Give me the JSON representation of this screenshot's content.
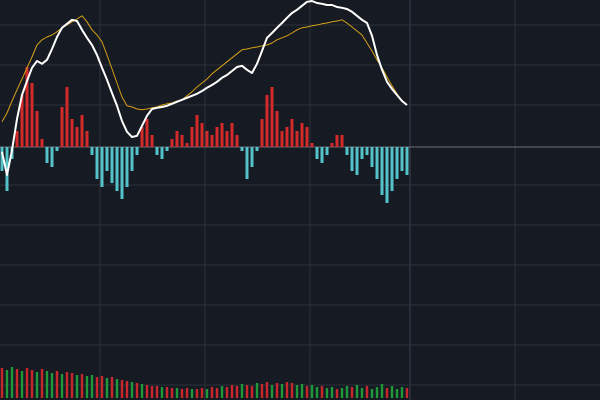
{
  "chart_data": {
    "type": "macd",
    "ylim": [
      -4.95,
      3.675
    ],
    "zero": 0,
    "histogram": {
      "up_color": "#d42a2a",
      "down_color": "#54c2c9",
      "values": [
        -0.6,
        -1.1,
        -0.3,
        0.4,
        1.3,
        2.0,
        1.6,
        0.9,
        0.2,
        -0.4,
        -0.5,
        -0.1,
        1.0,
        1.5,
        0.7,
        0.5,
        0.8,
        0.4,
        -0.2,
        -0.8,
        -1.0,
        -0.6,
        -0.9,
        -1.1,
        -1.3,
        -1.0,
        -0.6,
        -0.2,
        0.5,
        0.7,
        0.3,
        -0.2,
        -0.3,
        -0.1,
        0.2,
        0.4,
        0.3,
        0.1,
        0.5,
        0.8,
        0.6,
        0.4,
        0.3,
        0.5,
        0.6,
        0.4,
        0.6,
        0.3,
        -0.1,
        -0.8,
        -0.5,
        -0.1,
        0.7,
        1.3,
        1.5,
        0.9,
        0.4,
        0.5,
        0.7,
        0.4,
        0.6,
        0.5,
        0.1,
        -0.3,
        -0.4,
        -0.2,
        0.1,
        0.3,
        0.3,
        -0.2,
        -0.6,
        -0.7,
        -0.3,
        -0.2,
        -0.5,
        -0.8,
        -1.2,
        -1.4,
        -1.1,
        -0.8,
        -0.6,
        -0.7
      ]
    },
    "series": [
      {
        "color": "#d4a017",
        "values": [
          0.63,
          0.85,
          1.15,
          1.43,
          1.7,
          1.98,
          2.25,
          2.55,
          2.68,
          2.75,
          2.8,
          2.88,
          2.98,
          3.05,
          3.13,
          3.2,
          3.28,
          3.13,
          2.93,
          2.8,
          2.63,
          2.3,
          1.95,
          1.6,
          1.25,
          1.03,
          1.0,
          0.95,
          0.93,
          0.95,
          0.98,
          1.0,
          1.05,
          1.08,
          1.1,
          1.15,
          1.18,
          1.28,
          1.38,
          1.5,
          1.6,
          1.7,
          1.83,
          1.93,
          2.03,
          2.13,
          2.23,
          2.33,
          2.43,
          2.45,
          2.48,
          2.5,
          2.53,
          2.55,
          2.6,
          2.68,
          2.73,
          2.78,
          2.85,
          2.93,
          2.98,
          3.0,
          3.03,
          3.05,
          3.08,
          3.1,
          3.13,
          3.15,
          3.18,
          3.1,
          3.0,
          2.9,
          2.8,
          2.6,
          2.4,
          2.18,
          1.98,
          1.75,
          1.53,
          1.33,
          1.15,
          1.05
        ]
      },
      {
        "color": "#ffffff",
        "values": [
          -0.12,
          -0.7,
          -0.08,
          0.7,
          1.3,
          1.65,
          1.98,
          2.15,
          2.08,
          2.18,
          2.45,
          2.75,
          2.98,
          3.08,
          3.18,
          3.15,
          2.93,
          2.73,
          2.55,
          2.3,
          1.98,
          1.68,
          1.35,
          1.03,
          0.65,
          0.38,
          0.25,
          0.28,
          0.53,
          0.78,
          0.95,
          0.98,
          1.0,
          1.03,
          1.08,
          1.13,
          1.18,
          1.23,
          1.28,
          1.33,
          1.4,
          1.48,
          1.55,
          1.63,
          1.73,
          1.8,
          1.9,
          2.0,
          2.03,
          1.93,
          1.85,
          2.08,
          2.4,
          2.73,
          2.85,
          2.98,
          3.1,
          3.23,
          3.35,
          3.43,
          3.53,
          3.63,
          3.65,
          3.6,
          3.58,
          3.55,
          3.55,
          3.5,
          3.48,
          3.45,
          3.38,
          3.28,
          3.18,
          3.1,
          2.78,
          2.3,
          1.93,
          1.63,
          1.45,
          1.3,
          1.15,
          1.05
        ]
      }
    ],
    "volume": {
      "ylim": [
        0,
        35
      ],
      "up_color": "#c8282c",
      "down_color": "#1f9a3a",
      "values": [
        30,
        28,
        31,
        29,
        27,
        30,
        28,
        26,
        29,
        27,
        25,
        27,
        24,
        26,
        25,
        23,
        24,
        22,
        23,
        21,
        22,
        20,
        21,
        19,
        18,
        17,
        16,
        15,
        14,
        13,
        12,
        12,
        11,
        11,
        10,
        10,
        9,
        10,
        9,
        9,
        10,
        9,
        11,
        10,
        12,
        11,
        13,
        12,
        14,
        13,
        12,
        15,
        14,
        16,
        13,
        15,
        14,
        16,
        15,
        13,
        14,
        12,
        13,
        11,
        12,
        10,
        11,
        9,
        10,
        12,
        11,
        13,
        10,
        12,
        9,
        11,
        14,
        10,
        12,
        9,
        11,
        10
      ],
      "rising": [
        true,
        false,
        false,
        true,
        false,
        true,
        true,
        false,
        true,
        false,
        false,
        true,
        false,
        true,
        true,
        false,
        true,
        false,
        false,
        true,
        true,
        false,
        true,
        false,
        true,
        true,
        false,
        true,
        false,
        true,
        true,
        true,
        false,
        true,
        true,
        false,
        true,
        true,
        false,
        true,
        true,
        false,
        true,
        true,
        false,
        true,
        true,
        true,
        false,
        true,
        true,
        false,
        true,
        true,
        false,
        true,
        false,
        true,
        true,
        false,
        false,
        true,
        false,
        false,
        true,
        false,
        false,
        true,
        false,
        false,
        true,
        false,
        false,
        true,
        false,
        false,
        false,
        true,
        false,
        false,
        false,
        true
      ]
    }
  }
}
